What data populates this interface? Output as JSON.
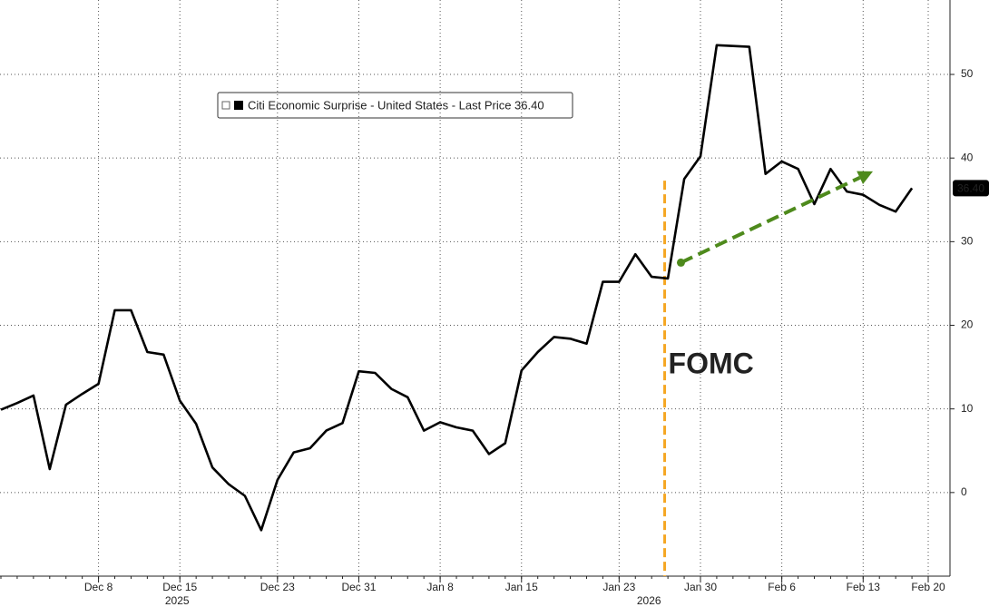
{
  "chart_data": {
    "type": "line",
    "categories": [
      null,
      null,
      null,
      null,
      null,
      null,
      "Dec 8",
      null,
      null,
      null,
      null,
      "Dec 15",
      null,
      null,
      null,
      null,
      null,
      "Dec 23",
      null,
      null,
      null,
      null,
      "Dec 31",
      null,
      null,
      null,
      null,
      "Jan 8",
      null,
      null,
      null,
      null,
      "Jan 15",
      null,
      null,
      null,
      null,
      null,
      "Jan 23",
      null,
      null,
      null,
      null,
      "Jan 30",
      null,
      null,
      null,
      null,
      "Feb 6",
      null,
      null,
      null,
      null,
      "Feb 13",
      null,
      null,
      null,
      "Feb 20"
    ],
    "x_sublabels": [
      null,
      null,
      null,
      null,
      null,
      null,
      null,
      null,
      null,
      null,
      null,
      "2025",
      null,
      null,
      null,
      null,
      null,
      null,
      null,
      null,
      null,
      null,
      null,
      null,
      null,
      null,
      null,
      null,
      null,
      null,
      null,
      null,
      null,
      null,
      null,
      null,
      null,
      null,
      null,
      null,
      "2026",
      null,
      null,
      null,
      null,
      null,
      null,
      null,
      null,
      null,
      null,
      null,
      null,
      null,
      null,
      null,
      null,
      null
    ],
    "series": [
      {
        "name": "Citi Economic Surprise - United States - Last Price 36.40",
        "color": "#000000",
        "values": [
          9.9,
          10.7,
          11.6,
          2.8,
          10.5,
          11.8,
          13.0,
          21.8,
          21.8,
          16.8,
          16.5,
          11.0,
          8.2,
          3.0,
          1.0,
          -0.4,
          -4.5,
          1.5,
          4.8,
          5.3,
          7.4,
          8.3,
          14.5,
          14.3,
          12.4,
          11.4,
          7.4,
          8.4,
          7.8,
          7.4,
          4.6,
          5.9,
          14.6,
          16.8,
          18.6,
          18.4,
          17.8,
          25.2,
          25.2,
          28.5,
          25.8,
          25.6,
          37.5,
          40.2,
          53.5,
          53.4,
          53.3,
          38.1,
          39.6,
          38.7,
          34.5,
          38.7,
          36.0,
          35.6,
          34.4,
          33.6,
          36.4,
          null
        ],
        "value_labels": [
          null,
          null,
          null,
          null,
          null,
          null,
          null,
          null,
          null,
          null,
          null,
          null,
          null,
          null,
          null,
          null,
          null,
          null,
          null,
          null,
          null,
          null,
          null,
          null,
          null,
          null,
          null,
          null,
          null,
          null,
          null,
          null,
          null,
          null,
          null,
          null,
          null,
          null,
          null,
          null,
          null,
          null,
          null,
          null,
          null,
          null,
          null,
          null,
          null,
          null,
          null,
          null,
          null,
          null,
          null,
          null,
          "36.40",
          null
        ]
      }
    ],
    "ylim": [
      -10,
      58.9
    ],
    "yticks": [
      0,
      10,
      20,
      30,
      40,
      50
    ],
    "grid": true,
    "annotations": [
      {
        "text": "FOMC",
        "x": 40.8,
        "y": [
          -10,
          37.3
        ],
        "color": "#f5a623"
      }
    ],
    "arrows": [
      {
        "from": [
          41.8,
          27.5
        ],
        "to": [
          53.6,
          38.4
        ],
        "color": "#4e8a1c"
      }
    ]
  }
}
